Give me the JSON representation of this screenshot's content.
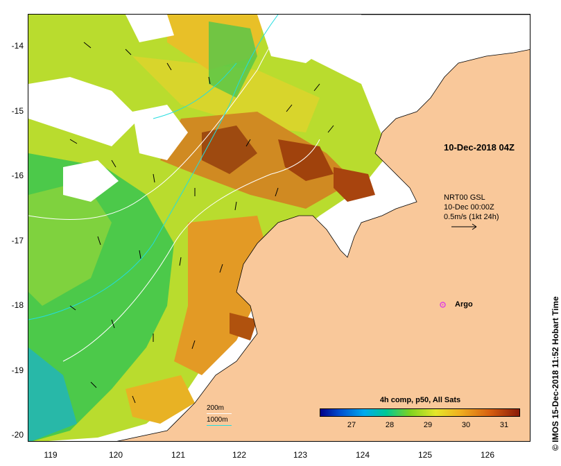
{
  "map": {
    "date_label": "10-Dec-2018 04Z",
    "current_product": "NRT00 GSL",
    "current_time": "10-Dec 00:00Z",
    "current_scale": "0.5m/s (1kt 24h)",
    "argo_label": "Argo",
    "colorbar_title": "4h comp, p50, All Sats",
    "colorbar_ticks": [
      "27",
      "28",
      "29",
      "30",
      "31"
    ],
    "contour_labels": [
      "200m",
      "1000m"
    ],
    "credit": "© IMOS 15-Dec-2018 11:52 Hobart Time",
    "y_ticks": [
      "-14",
      "-15",
      "-16",
      "-17",
      "-18",
      "-19",
      "-20"
    ],
    "x_ticks": [
      "119",
      "120",
      "121",
      "122",
      "123",
      "124",
      "125",
      "126"
    ],
    "colors": {
      "land": "#f9c89a",
      "no_data": "#ffffff",
      "argo": "#e040e0",
      "contour_200m": "#ffffff",
      "contour_1000m": "#22dde0"
    }
  }
}
